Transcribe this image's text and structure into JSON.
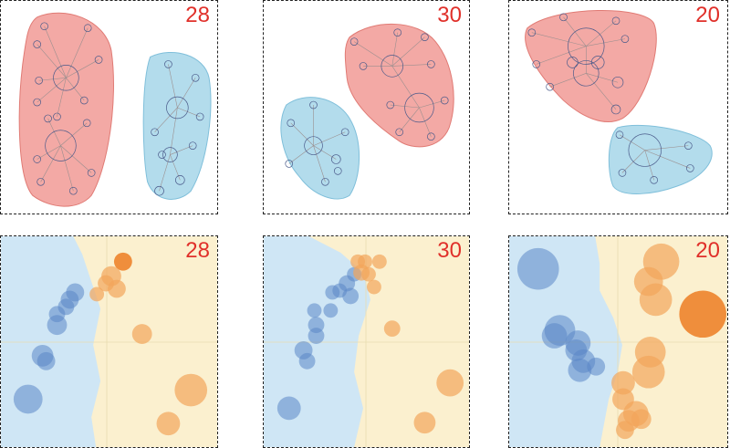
{
  "panels": [
    {
      "id": "graph-28",
      "label": "28"
    },
    {
      "id": "graph-30",
      "label": "30"
    },
    {
      "id": "graph-20",
      "label": "20"
    },
    {
      "id": "scatter-28",
      "label": "28"
    },
    {
      "id": "scatter-30",
      "label": "30"
    },
    {
      "id": "scatter-20",
      "label": "20"
    }
  ],
  "colors": {
    "red_cluster": "#f3a9a5",
    "blue_cluster": "#b3dcec",
    "blue_region": "#cfe6f5",
    "yellow_region": "#fbf0cf",
    "blue_bubble": "#5b86c7",
    "orange_bubble": "#f2a55b",
    "dark_orange_bubble": "#ec7d22",
    "number_color": "#e0302a"
  }
}
